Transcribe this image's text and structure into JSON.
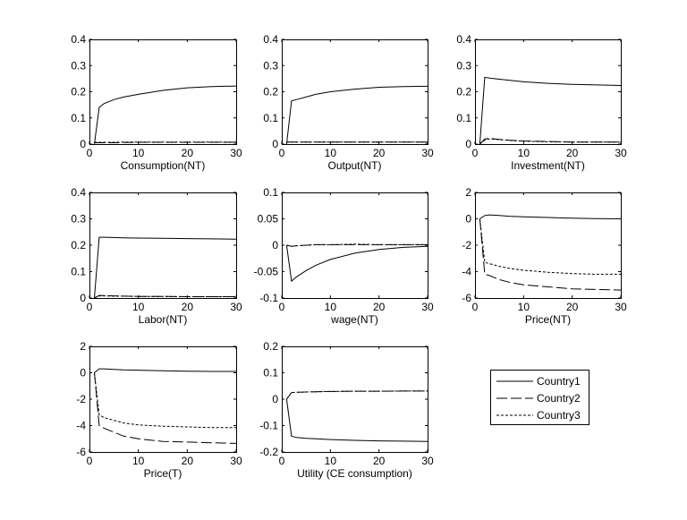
{
  "chart_data": [
    {
      "type": "line",
      "xlabel": "Consumption(NT)",
      "xlim": [
        0,
        30
      ],
      "ylim": [
        0,
        0.4
      ],
      "xticks": [
        "0",
        "10",
        "20",
        "30"
      ],
      "yticks": [
        "0",
        "0.1",
        "0.2",
        "0.3",
        "0.4"
      ],
      "grid": false,
      "x": [
        1,
        2,
        3,
        5,
        7,
        10,
        15,
        20,
        25,
        30
      ],
      "series": [
        {
          "name": "Country1",
          "style": "solid",
          "values": [
            0,
            0.14,
            0.155,
            0.17,
            0.18,
            0.19,
            0.205,
            0.215,
            0.22,
            0.222
          ]
        },
        {
          "name": "Country2",
          "style": "dashed",
          "values": [
            0.005,
            0.005,
            0.005,
            0.005,
            0.006,
            0.007,
            0.007,
            0.007,
            0.007,
            0.007
          ]
        },
        {
          "name": "Country3",
          "style": "dotted",
          "values": [
            0.007,
            0.007,
            0.007,
            0.007,
            0.008,
            0.008,
            0.008,
            0.008,
            0.008,
            0.008
          ]
        }
      ]
    },
    {
      "type": "line",
      "xlabel": "Output(NT)",
      "xlim": [
        0,
        30
      ],
      "ylim": [
        0,
        0.4
      ],
      "xticks": [
        "0",
        "10",
        "20",
        "30"
      ],
      "yticks": [
        "0",
        "0.1",
        "0.2",
        "0.3",
        "0.4"
      ],
      "grid": false,
      "x": [
        1,
        2,
        3,
        5,
        7,
        10,
        15,
        20,
        25,
        30
      ],
      "series": [
        {
          "name": "Country1",
          "style": "solid",
          "values": [
            0,
            0.165,
            0.17,
            0.18,
            0.19,
            0.2,
            0.21,
            0.217,
            0.22,
            0.221
          ]
        },
        {
          "name": "Country2",
          "style": "dashed",
          "values": [
            0.008,
            0.008,
            0.008,
            0.008,
            0.008,
            0.008,
            0.008,
            0.008,
            0.008,
            0.008
          ]
        },
        {
          "name": "Country3",
          "style": "dotted",
          "values": [
            0.008,
            0.008,
            0.008,
            0.008,
            0.008,
            0.008,
            0.008,
            0.008,
            0.008,
            0.008
          ]
        }
      ]
    },
    {
      "type": "line",
      "xlabel": "Investment(NT)",
      "xlim": [
        0,
        30
      ],
      "ylim": [
        0,
        0.4
      ],
      "xticks": [
        "0",
        "10",
        "20",
        "30"
      ],
      "yticks": [
        "0",
        "0.1",
        "0.2",
        "0.3",
        "0.4"
      ],
      "grid": false,
      "x": [
        1,
        2,
        3,
        5,
        7,
        10,
        15,
        20,
        25,
        30
      ],
      "series": [
        {
          "name": "Country1",
          "style": "solid",
          "values": [
            0,
            0.255,
            0.252,
            0.248,
            0.244,
            0.238,
            0.232,
            0.228,
            0.226,
            0.224
          ]
        },
        {
          "name": "Country2",
          "style": "dashed",
          "values": [
            0,
            0.02,
            0.022,
            0.018,
            0.015,
            0.012,
            0.01,
            0.008,
            0.008,
            0.008
          ]
        },
        {
          "name": "Country3",
          "style": "dotted",
          "values": [
            0,
            0.015,
            0.02,
            0.017,
            0.014,
            0.011,
            0.009,
            0.008,
            0.008,
            0.008
          ]
        }
      ]
    },
    {
      "type": "line",
      "xlabel": "Labor(NT)",
      "xlim": [
        0,
        30
      ],
      "ylim": [
        0,
        0.4
      ],
      "xticks": [
        "0",
        "10",
        "20",
        "30"
      ],
      "yticks": [
        "0",
        "0.1",
        "0.2",
        "0.3",
        "0.4"
      ],
      "grid": false,
      "x": [
        1,
        2,
        3,
        5,
        7,
        10,
        15,
        20,
        25,
        30
      ],
      "series": [
        {
          "name": "Country1",
          "style": "solid",
          "values": [
            0,
            0.23,
            0.23,
            0.229,
            0.228,
            0.227,
            0.226,
            0.225,
            0.224,
            0.223
          ]
        },
        {
          "name": "Country2",
          "style": "dashed",
          "values": [
            0,
            0.01,
            0.009,
            0.008,
            0.007,
            0.006,
            0.006,
            0.005,
            0.005,
            0.005
          ]
        },
        {
          "name": "Country3",
          "style": "dotted",
          "values": [
            0,
            0.008,
            0.008,
            0.007,
            0.007,
            0.006,
            0.006,
            0.005,
            0.005,
            0.005
          ]
        }
      ]
    },
    {
      "type": "line",
      "xlabel": "wage(NT)",
      "xlim": [
        0,
        30
      ],
      "ylim": [
        -0.1,
        0.1
      ],
      "xticks": [
        "0",
        "10",
        "20",
        "30"
      ],
      "yticks": [
        "-0.1",
        "-0.05",
        "0",
        "0.05",
        "0.1"
      ],
      "grid": false,
      "x": [
        1,
        2,
        3,
        5,
        7,
        10,
        15,
        20,
        25,
        30
      ],
      "series": [
        {
          "name": "Country1",
          "style": "solid",
          "values": [
            0,
            -0.068,
            -0.06,
            -0.048,
            -0.038,
            -0.027,
            -0.015,
            -0.008,
            -0.004,
            -0.002
          ]
        },
        {
          "name": "Country2",
          "style": "dashed",
          "values": [
            0,
            -0.002,
            -0.001,
            0,
            0.001,
            0.001,
            0.001,
            0.001,
            0.001,
            0.001
          ]
        },
        {
          "name": "Country3",
          "style": "dotted",
          "values": [
            0,
            -0.002,
            -0.001,
            0,
            0.001,
            0.001,
            0.002,
            0.001,
            0.001,
            0.001
          ]
        }
      ]
    },
    {
      "type": "line",
      "xlabel": "Price(NT)",
      "xlim": [
        0,
        30
      ],
      "ylim": [
        -6,
        2
      ],
      "xticks": [
        "0",
        "10",
        "20",
        "30"
      ],
      "yticks": [
        "-6",
        "-4",
        "-2",
        "0",
        "2"
      ],
      "grid": false,
      "x": [
        1,
        2,
        3,
        5,
        7,
        10,
        15,
        20,
        25,
        30
      ],
      "series": [
        {
          "name": "Country1",
          "style": "solid",
          "values": [
            0,
            0.25,
            0.3,
            0.25,
            0.2,
            0.15,
            0.1,
            0.05,
            0.02,
            0
          ]
        },
        {
          "name": "Country2",
          "style": "dashed",
          "values": [
            0,
            -4.2,
            -4.3,
            -4.6,
            -4.8,
            -5.0,
            -5.15,
            -5.3,
            -5.35,
            -5.4
          ]
        },
        {
          "name": "Country3",
          "style": "dotted",
          "values": [
            0,
            -3.3,
            -3.4,
            -3.6,
            -3.75,
            -3.9,
            -4.05,
            -4.15,
            -4.2,
            -4.2
          ]
        }
      ]
    },
    {
      "type": "line",
      "xlabel": "Price(T)",
      "xlim": [
        0,
        30
      ],
      "ylim": [
        -6,
        2
      ],
      "xticks": [
        "0",
        "10",
        "20",
        "30"
      ],
      "yticks": [
        "-6",
        "-4",
        "-2",
        "0",
        "2"
      ],
      "grid": false,
      "x": [
        1,
        2,
        3,
        5,
        7,
        10,
        15,
        20,
        25,
        30
      ],
      "series": [
        {
          "name": "Country1",
          "style": "solid",
          "values": [
            0,
            0.3,
            0.3,
            0.25,
            0.22,
            0.2,
            0.15,
            0.12,
            0.1,
            0.1
          ]
        },
        {
          "name": "Country2",
          "style": "dashed",
          "values": [
            0,
            -4.0,
            -4.2,
            -4.5,
            -4.8,
            -5.0,
            -5.2,
            -5.25,
            -5.3,
            -5.35
          ]
        },
        {
          "name": "Country3",
          "style": "dotted",
          "values": [
            0,
            -3.2,
            -3.4,
            -3.6,
            -3.8,
            -3.95,
            -4.05,
            -4.1,
            -4.15,
            -4.15
          ]
        }
      ]
    },
    {
      "type": "line",
      "xlabel": "Utility (CE consumption)",
      "xlim": [
        0,
        30
      ],
      "ylim": [
        -0.2,
        0.2
      ],
      "xticks": [
        "0",
        "10",
        "20",
        "30"
      ],
      "yticks": [
        "-0.2",
        "-0.1",
        "0",
        "0.1",
        "0.2"
      ],
      "grid": false,
      "x": [
        1,
        2,
        3,
        5,
        7,
        10,
        15,
        20,
        25,
        30
      ],
      "series": [
        {
          "name": "Country1",
          "style": "solid",
          "values": [
            0,
            -0.14,
            -0.145,
            -0.148,
            -0.15,
            -0.153,
            -0.156,
            -0.158,
            -0.159,
            -0.16
          ]
        },
        {
          "name": "Country2",
          "style": "dashed",
          "values": [
            0,
            0.025,
            0.026,
            0.027,
            0.028,
            0.029,
            0.03,
            0.03,
            0.031,
            0.031
          ]
        },
        {
          "name": "Country3",
          "style": "dotted",
          "values": [
            0,
            0.025,
            0.026,
            0.027,
            0.028,
            0.029,
            0.03,
            0.03,
            0.031,
            0.031
          ]
        }
      ]
    }
  ],
  "legend": {
    "placement": "bottom-right",
    "entries": [
      {
        "label": "Country1",
        "style": "solid"
      },
      {
        "label": "Country2",
        "style": "dashed"
      },
      {
        "label": "Country3",
        "style": "dotted"
      }
    ]
  },
  "colors": {
    "line": "#000000",
    "background": "#ffffff"
  }
}
